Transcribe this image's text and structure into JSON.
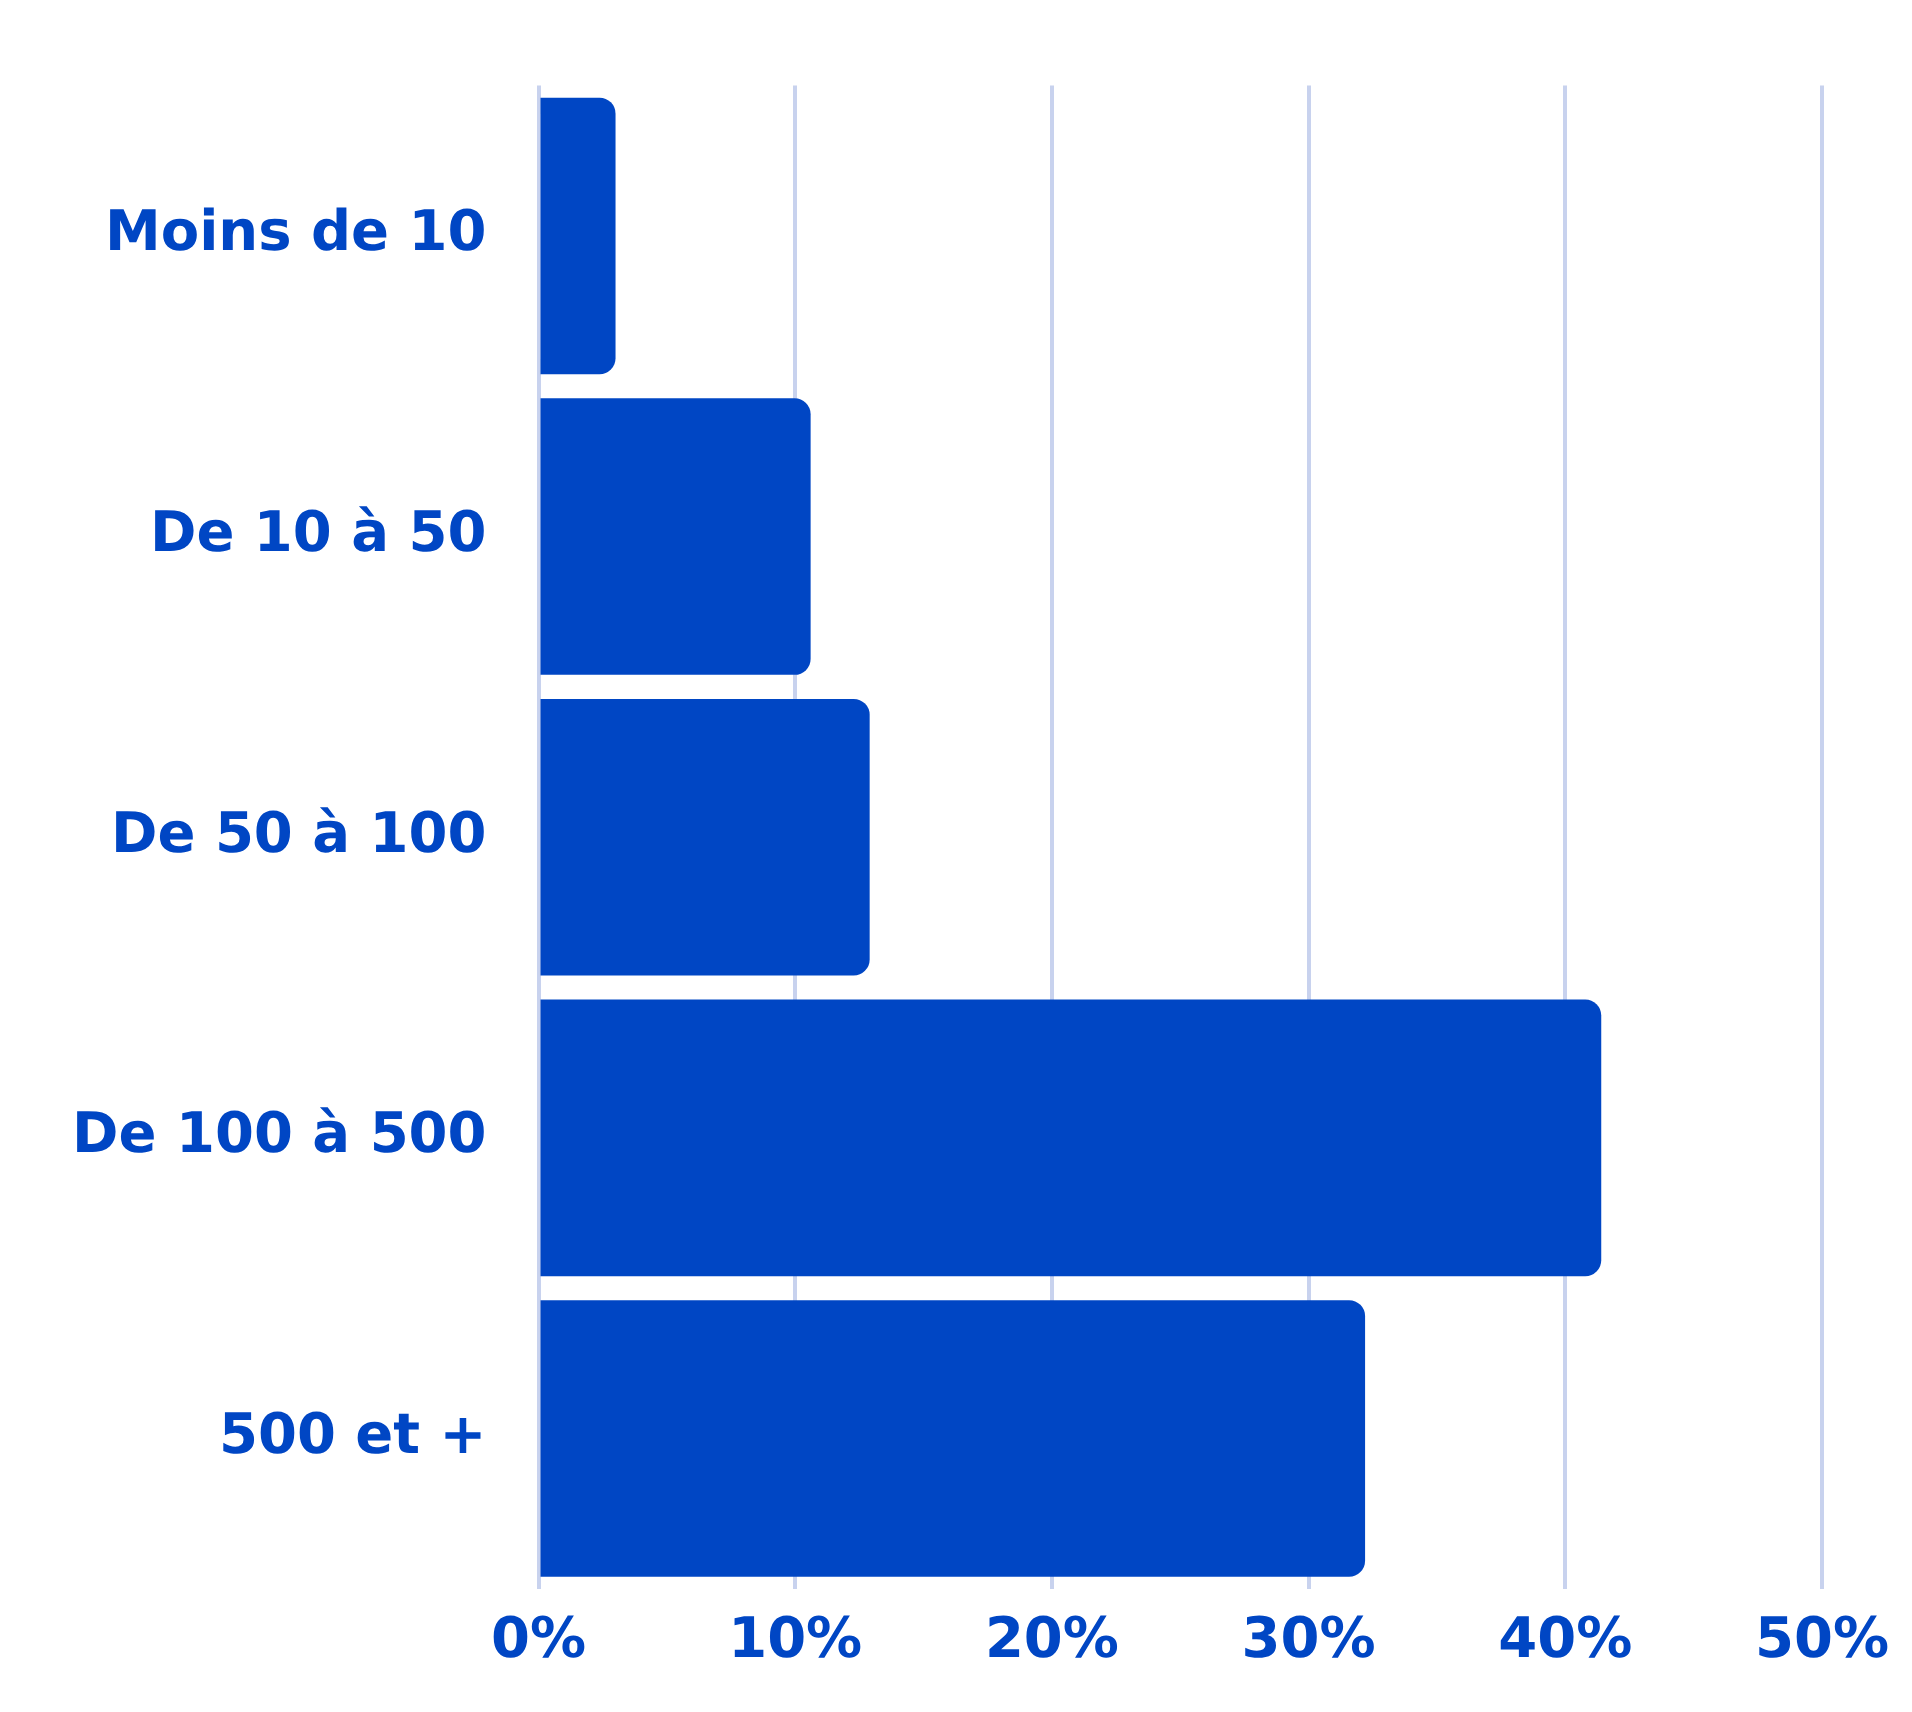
{
  "chart_data": {
    "type": "bar",
    "orientation": "horizontal",
    "categories": [
      "Moins de 10",
      "De 10 à 50",
      "De 50 à 100",
      "De 100 à 500",
      "500 et +"
    ],
    "values": [
      3.0,
      10.6,
      12.9,
      41.4,
      32.2
    ],
    "color": "#0046c4",
    "xlim": [
      0,
      50
    ],
    "xticks": [
      {
        "value": 0,
        "label": "0%"
      },
      {
        "value": 10,
        "label": "10%"
      },
      {
        "value": 20,
        "label": "20%"
      },
      {
        "value": 30,
        "label": "30%"
      },
      {
        "value": 40,
        "label": "40%"
      },
      {
        "value": 50,
        "label": "50%"
      }
    ],
    "grid": "x",
    "legend": false
  }
}
